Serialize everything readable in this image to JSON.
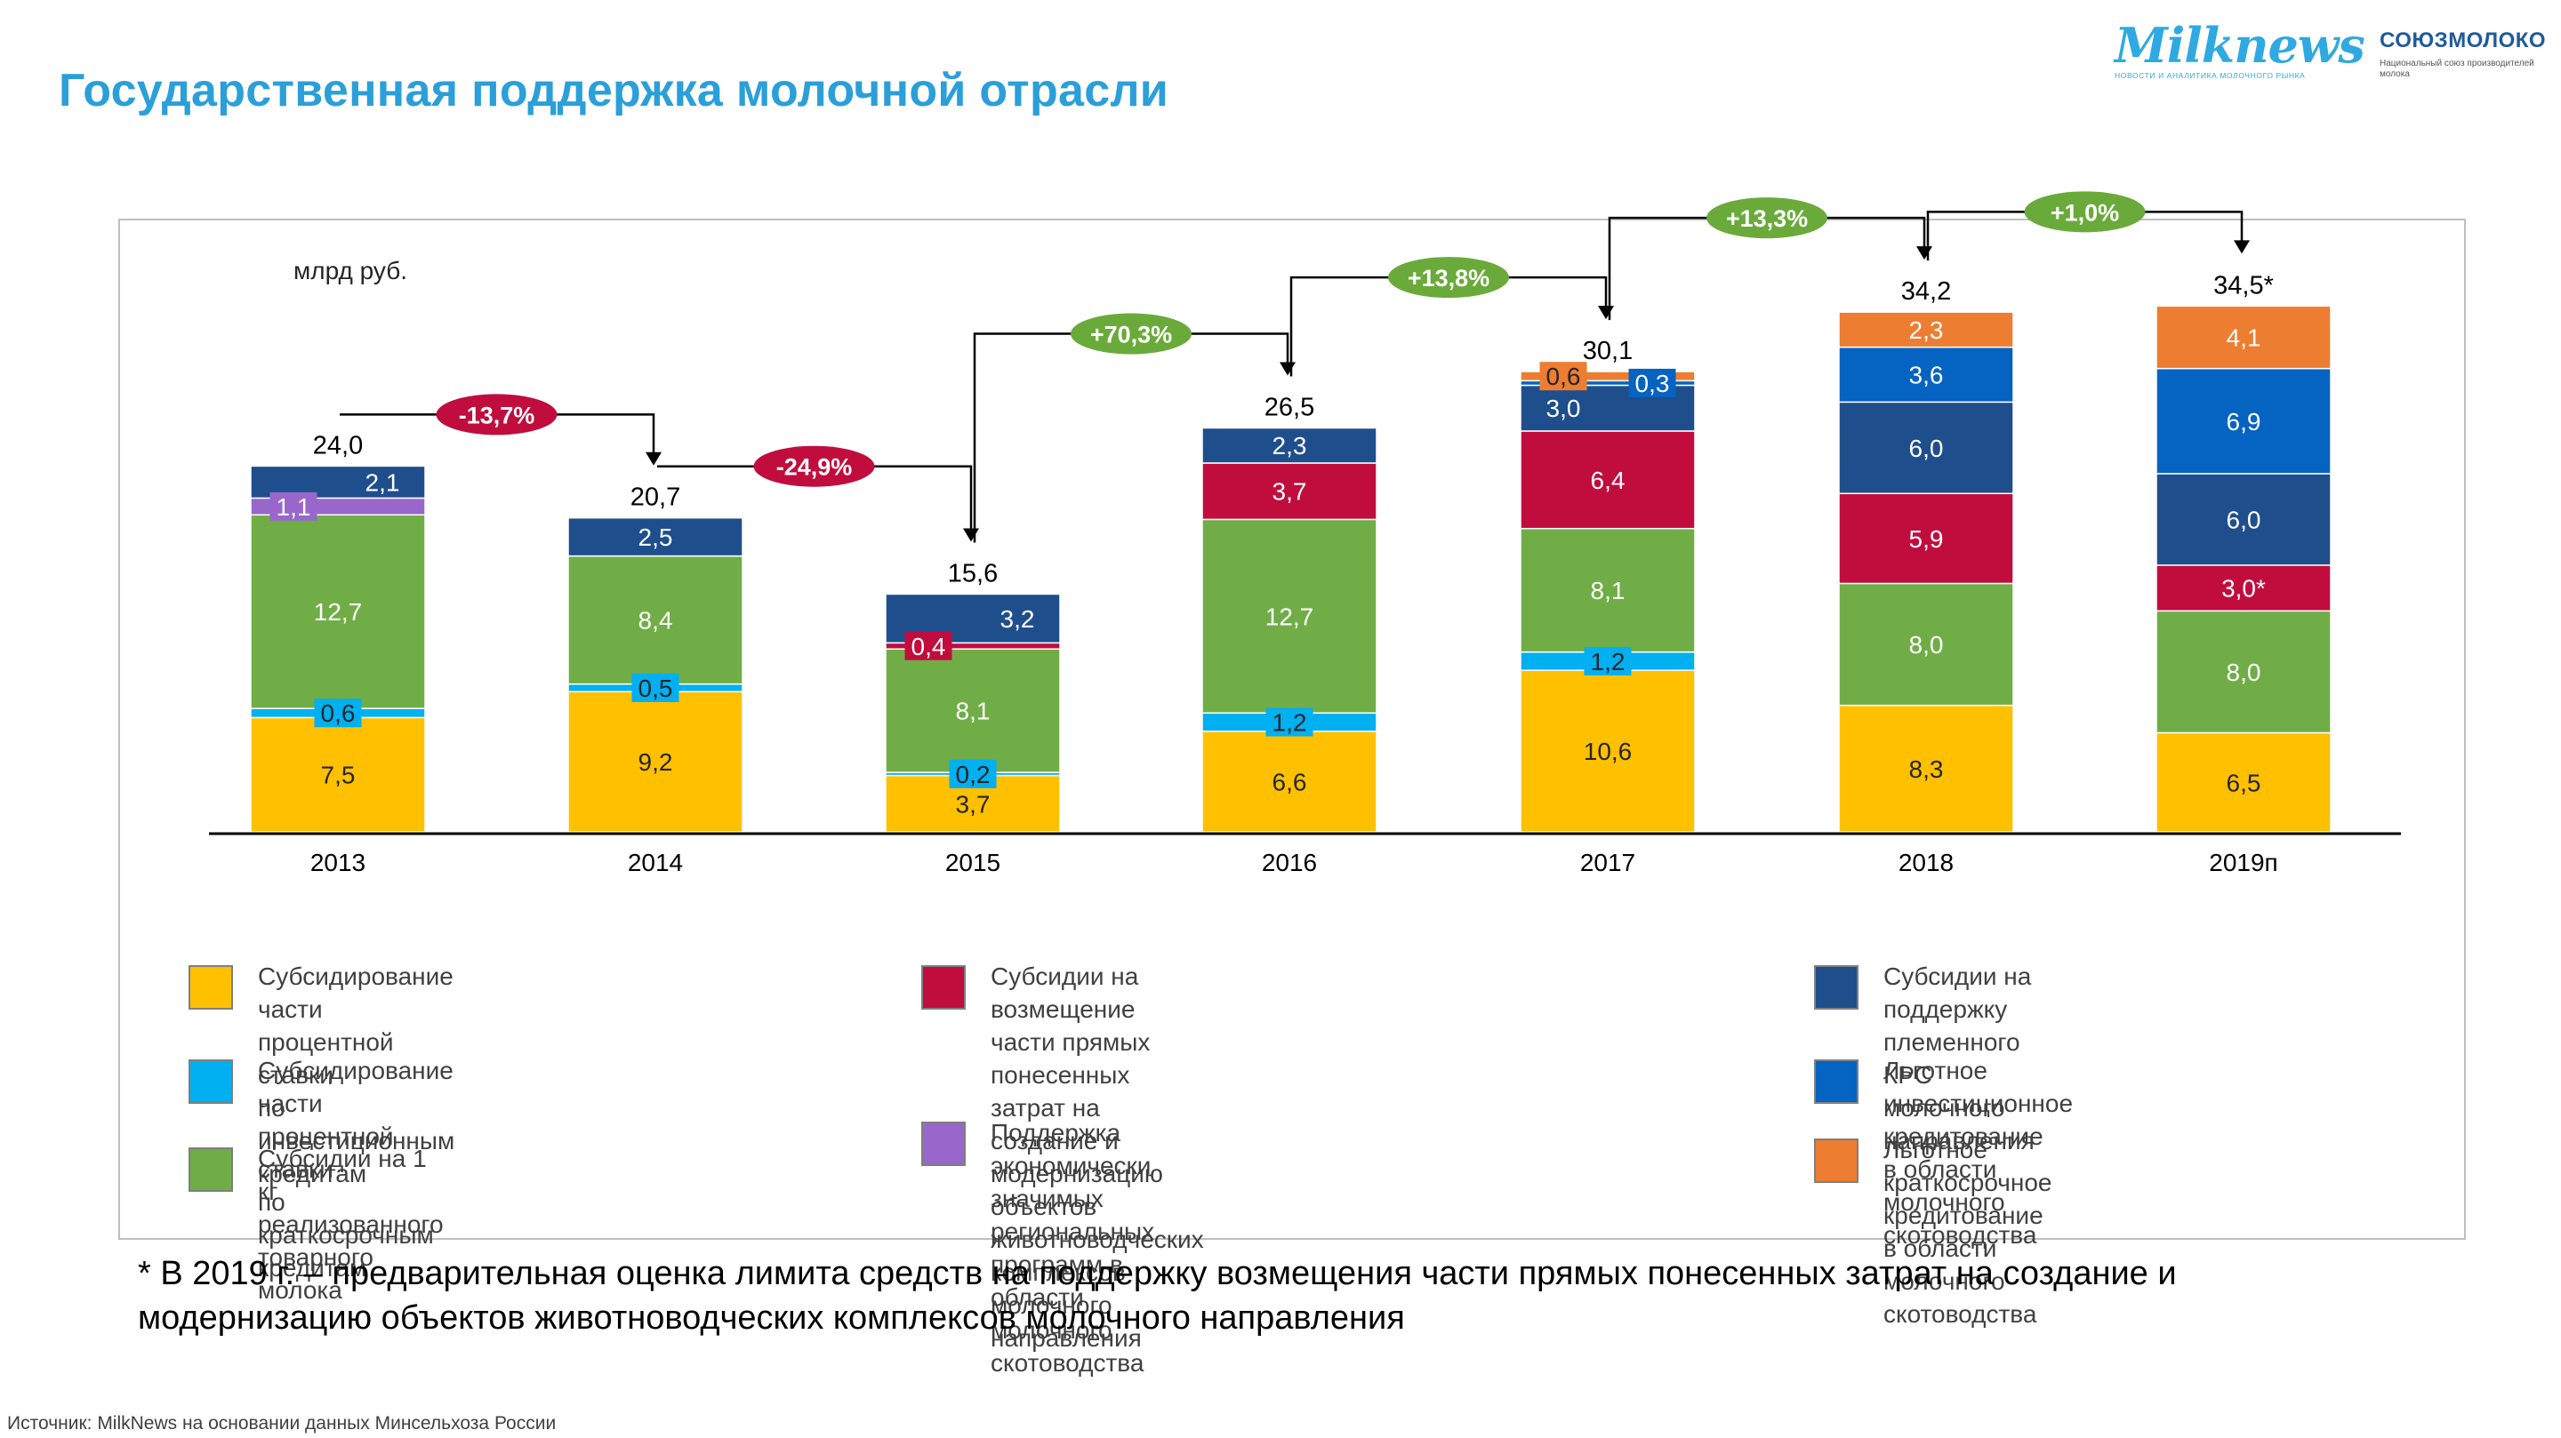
{
  "page": {
    "title": "Государственная поддержка молочной отрасли",
    "logos": {
      "milknews": {
        "name": "Milknews",
        "tagline": "НОВОСТИ И АНАЛИТИКА МОЛОЧНОГО РЫНКА"
      },
      "soyuzmoloko": {
        "name": "СОЮЗМОЛОКО",
        "tagline": "Национальный союз производителей молока"
      }
    },
    "footnote": "* В 2019 г. – предварительная оценка лимита средств на поддержку возмещения части прямых понесенных затрат на создание и\nмодернизацию объектов животноводческих комплексов молочного направления",
    "source": "Источник: MilkNews на основании данных Минсельхоза России"
  },
  "legend": [
    {
      "key": "invest_rate",
      "label": "Субсидирование части процентной ставки\nпо инвестиционным кредитам"
    },
    {
      "key": "short_rate",
      "label": "Субсидирование части процентной ставки\nпо краткосрочным кредитам"
    },
    {
      "key": "per_kg",
      "label": "Субсидии на 1 кг\nреализованного товарного молока"
    },
    {
      "key": "capex",
      "label": "Субсидии на возмещение части прямых понесенных\nзатрат на создание и модернизацию объектов\nживотноводческих комплексов молочного направления"
    },
    {
      "key": "regional",
      "label": "Поддержка экономически значимых региональных\nпрограмм в области молочного скотоводства"
    },
    {
      "key": "breeding",
      "label": "Субсидии на поддержку племенного\nКРС молочного направления"
    },
    {
      "key": "pref_invest",
      "label": "Льготное инвестиционное кредитование\nв области молочного скотоводства"
    },
    {
      "key": "pref_short",
      "label": "Льготное краткосрочное кредитование\nв области молочного скотоводства"
    }
  ],
  "chart_data": {
    "type": "bar",
    "stacked": true,
    "unit_label": "млрд руб.",
    "categories": [
      "2013",
      "2014",
      "2015",
      "2016",
      "2017",
      "2018",
      "2019п"
    ],
    "series": [
      {
        "key": "invest_rate",
        "color": "#ffc000",
        "values": [
          7.5,
          9.2,
          3.7,
          6.6,
          10.6,
          8.3,
          6.5
        ],
        "labels": [
          "7,5",
          "9,2",
          "3,7",
          "6,6",
          "10,6",
          "8,3",
          "6,5"
        ]
      },
      {
        "key": "short_rate",
        "color": "#00b0f0",
        "values": [
          0.6,
          0.5,
          0.2,
          1.2,
          1.2,
          null,
          null
        ],
        "labels": [
          "0,6",
          "0,5",
          "0,2",
          "1,2",
          "1,2",
          "",
          ""
        ]
      },
      {
        "key": "per_kg",
        "color": "#70ad47",
        "values": [
          12.7,
          8.4,
          8.1,
          12.7,
          8.1,
          8.0,
          8.0
        ],
        "labels": [
          "12,7",
          "8,4",
          "8,1",
          "12,7",
          "8,1",
          "8,0",
          "8,0"
        ]
      },
      {
        "key": "capex",
        "color": "#c00d3e",
        "values": [
          null,
          null,
          0.4,
          3.7,
          6.4,
          5.9,
          3.0
        ],
        "labels": [
          "",
          "",
          "0,4",
          "3,7",
          "6,4",
          "5,9",
          "3,0*"
        ]
      },
      {
        "key": "regional",
        "color": "#9966cc",
        "values": [
          1.1,
          null,
          null,
          null,
          null,
          null,
          null
        ],
        "labels": [
          "1,1",
          "",
          "",
          "",
          "",
          "",
          ""
        ]
      },
      {
        "key": "breeding",
        "color": "#1f4e8c",
        "values": [
          2.1,
          2.5,
          3.2,
          2.3,
          3.0,
          6.0,
          6.0
        ],
        "labels": [
          "2,1",
          "2,5",
          "3,2",
          "2,3",
          "3,0",
          "6,0",
          "6,0"
        ]
      },
      {
        "key": "pref_invest",
        "color": "#0563c1",
        "values": [
          null,
          null,
          null,
          null,
          0.3,
          3.6,
          6.9
        ],
        "labels": [
          "",
          "",
          "",
          "",
          "0,3",
          "3,6",
          "6,9"
        ]
      },
      {
        "key": "pref_short",
        "color": "#ed7d31",
        "values": [
          null,
          null,
          null,
          null,
          0.6,
          2.3,
          4.1
        ],
        "labels": [
          "",
          "",
          "",
          "",
          "0,6",
          "2,3",
          "4,1"
        ]
      }
    ],
    "totals": [
      24.0,
      20.7,
      15.6,
      26.5,
      30.1,
      34.2,
      34.5
    ],
    "total_labels": [
      "24,0",
      "20,7",
      "15,6",
      "26,5",
      "30,1",
      "34,2",
      "34,5*"
    ],
    "changes": [
      {
        "from": 0,
        "to": 1,
        "label": "-13,7%",
        "direction": "down"
      },
      {
        "from": 1,
        "to": 2,
        "label": "-24,9%",
        "direction": "down"
      },
      {
        "from": 2,
        "to": 3,
        "label": "+70,3%",
        "direction": "up"
      },
      {
        "from": 3,
        "to": 4,
        "label": "+13,8%",
        "direction": "up"
      },
      {
        "from": 4,
        "to": 5,
        "label": "+13,3%",
        "direction": "up"
      },
      {
        "from": 5,
        "to": 6,
        "label": "+1,0%",
        "direction": "up"
      }
    ],
    "colors": {
      "decrease": "#c00d3e",
      "increase": "#6aaa3a",
      "axis": "#000000"
    }
  }
}
